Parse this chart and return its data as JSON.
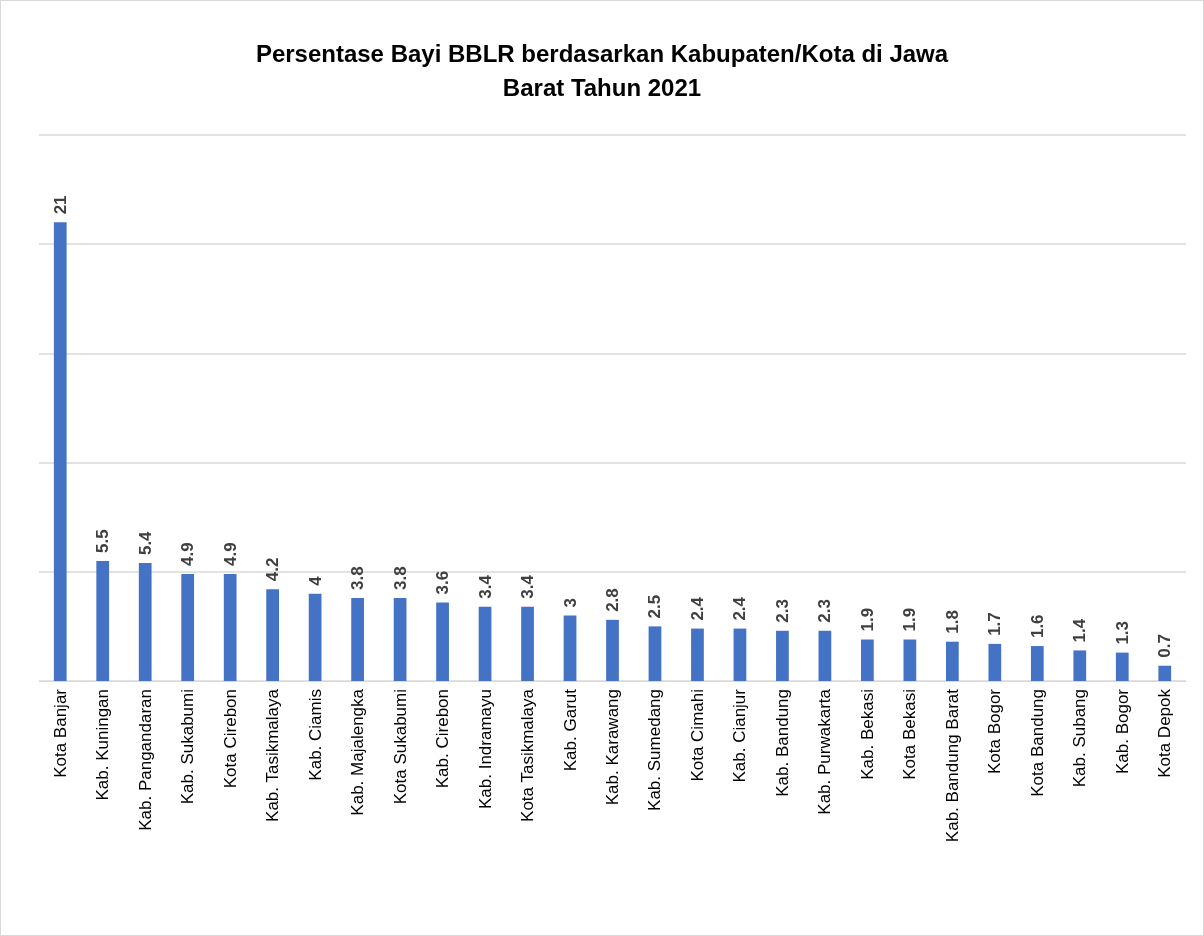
{
  "chart_data": {
    "type": "bar",
    "title": "Persentase Bayi BBLR berdasarkan Kabupaten/Kota di Jawa\nBarat Tahun 2021",
    "categories": [
      "Kota Banjar",
      "Kab. Kuningan",
      "Kab. Pangandaran",
      "Kab. Sukabumi",
      "Kota Cirebon",
      "Kab. Tasikmalaya",
      "Kab. Ciamis",
      "Kab. Majalengka",
      "Kota Sukabumi",
      "Kab. Cirebon",
      "Kab. Indramayu",
      "Kota Tasikmalaya",
      "Kab. Garut",
      "Kab. Karawang",
      "Kab. Sumedang",
      "Kota Cimahi",
      "Kab. Cianjur",
      "Kab. Bandung",
      "Kab. Purwakarta",
      "Kab. Bekasi",
      "Kota Bekasi",
      "Kab. Bandung Barat",
      "Kota Bogor",
      "Kota Bandung",
      "Kab. Subang",
      "Kab. Bogor",
      "Kota Depok"
    ],
    "values": [
      21,
      5.5,
      5.4,
      4.9,
      4.9,
      4.2,
      4,
      3.8,
      3.8,
      3.6,
      3.4,
      3.4,
      3,
      2.8,
      2.5,
      2.4,
      2.4,
      2.3,
      2.3,
      1.9,
      1.9,
      1.8,
      1.7,
      1.6,
      1.4,
      1.3,
      0.7
    ],
    "color": "#4472c4",
    "ylim": [
      0,
      25
    ],
    "yticks": [
      {
        "value": 0,
        "label": null
      },
      {
        "value": 5,
        "label": null
      },
      {
        "value": 10,
        "label": null
      },
      {
        "value": 15,
        "label": null
      },
      {
        "value": 20,
        "label": null
      },
      {
        "value": 25,
        "label": null
      }
    ],
    "grid": "y",
    "tick_labels": "x",
    "data_labels": true
  }
}
